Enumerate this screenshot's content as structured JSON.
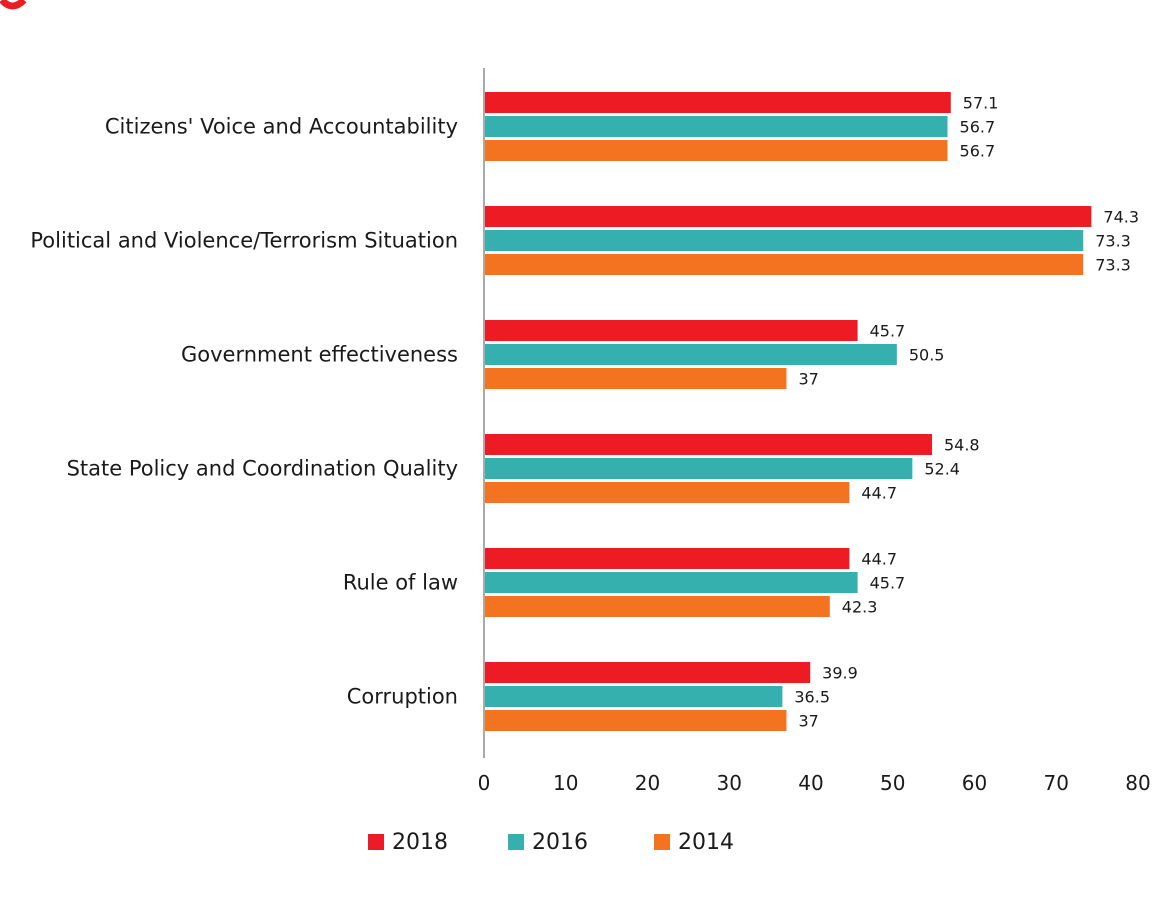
{
  "chart_data": {
    "type": "bar",
    "orientation": "horizontal",
    "categories": [
      "Citizens' Voice and Accountability",
      "Political and Violence/Terrorism Situation",
      "Government effectiveness",
      "State Policy and Coordination Quality",
      "Rule of law",
      "Corruption"
    ],
    "series": [
      {
        "name": "2018",
        "color": "#ED1C24",
        "values": [
          57.1,
          74.3,
          45.7,
          54.8,
          44.7,
          39.9
        ]
      },
      {
        "name": "2016",
        "color": "#36AFAF",
        "values": [
          56.7,
          73.3,
          50.5,
          52.4,
          45.7,
          36.5
        ]
      },
      {
        "name": "2014",
        "color": "#F47320",
        "values": [
          56.7,
          73.3,
          37,
          44.7,
          42.3,
          37
        ]
      }
    ],
    "xlim": [
      0,
      80
    ],
    "xticks": [
      "0",
      "10",
      "20",
      "30",
      "40",
      "50",
      "60",
      "70",
      "80"
    ],
    "grid": false,
    "legend": "bottom",
    "data_labels": true
  }
}
